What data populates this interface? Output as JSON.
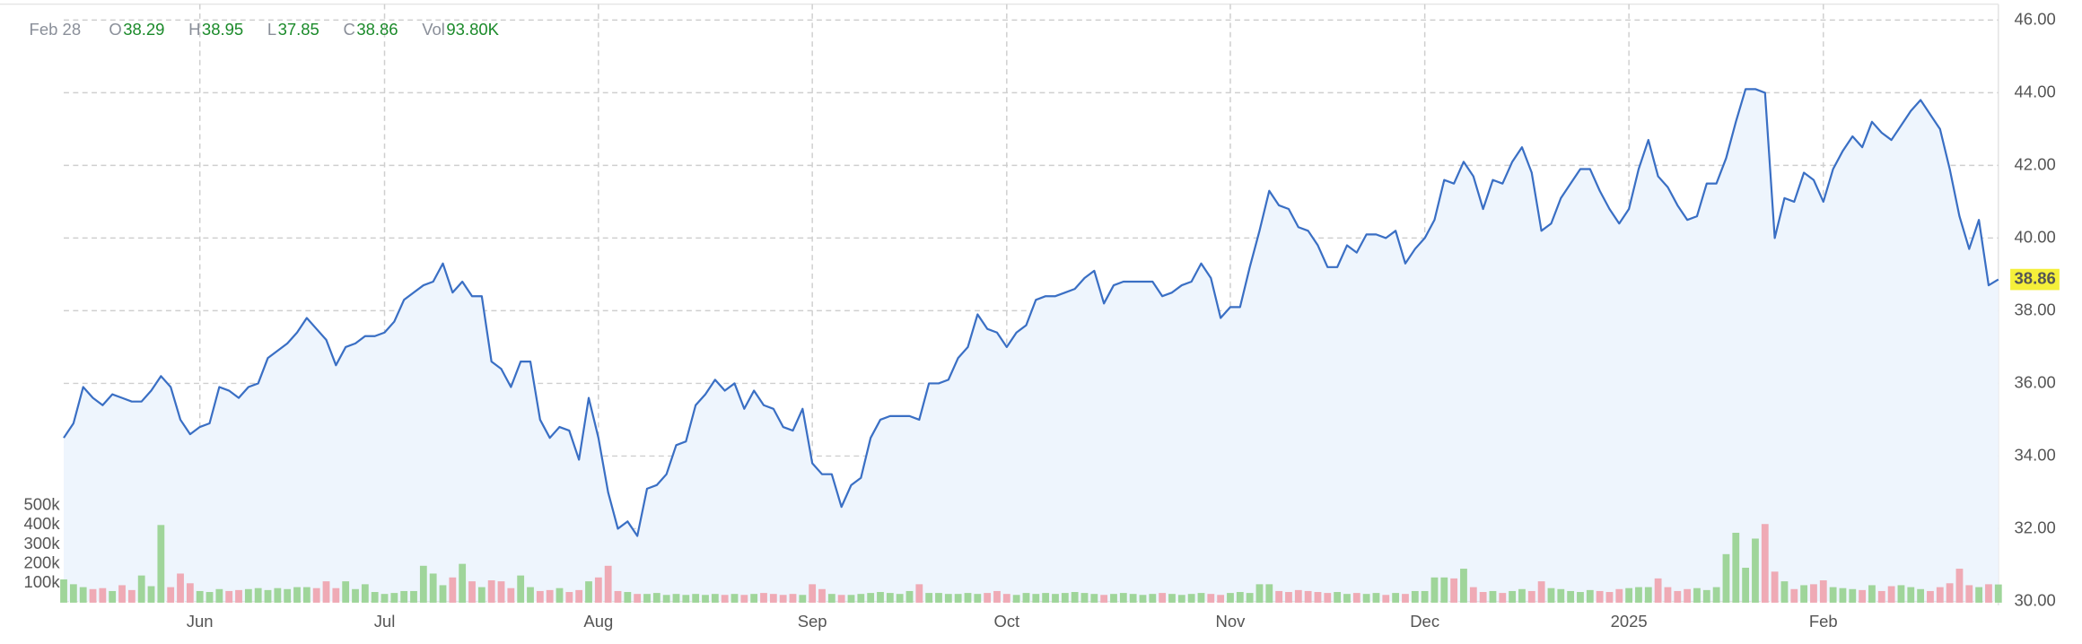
{
  "chart_data": {
    "type": "area",
    "header": {
      "date": "Feb 28",
      "items": [
        {
          "key": "O",
          "value": 38.29
        },
        {
          "key": "H",
          "value": 38.95
        },
        {
          "key": "L",
          "value": 37.85
        },
        {
          "key": "C",
          "value": 38.86
        },
        {
          "key": "Vol",
          "value": "93.80K"
        }
      ]
    },
    "categories": [
      null,
      null,
      null,
      null,
      null,
      null,
      null,
      null,
      null,
      null,
      null,
      null,
      null,
      null,
      "Jun",
      null,
      null,
      null,
      null,
      null,
      null,
      null,
      null,
      null,
      null,
      null,
      null,
      null,
      null,
      null,
      null,
      null,
      null,
      "Jul",
      null,
      null,
      null,
      null,
      null,
      null,
      null,
      null,
      null,
      null,
      null,
      null,
      null,
      null,
      null,
      null,
      null,
      null,
      null,
      null,
      null,
      "Aug",
      null,
      null,
      null,
      null,
      null,
      null,
      null,
      null,
      null,
      null,
      null,
      null,
      null,
      null,
      null,
      null,
      null,
      null,
      null,
      null,
      null,
      "Sep",
      null,
      null,
      null,
      null,
      null,
      null,
      null,
      null,
      null,
      null,
      null,
      null,
      null,
      null,
      null,
      null,
      null,
      null,
      null,
      "Oct",
      null,
      null,
      null,
      null,
      null,
      null,
      null,
      null,
      null,
      null,
      null,
      null,
      null,
      null,
      null,
      null,
      null,
      null,
      null,
      null,
      null,
      null,
      "Nov",
      null,
      null,
      null,
      null,
      null,
      null,
      null,
      null,
      null,
      null,
      null,
      null,
      null,
      null,
      null,
      null,
      null,
      null,
      null,
      "Dec",
      null,
      null,
      null,
      null,
      null,
      null,
      null,
      null,
      null,
      null,
      null,
      null,
      null,
      null,
      null,
      null,
      null,
      null,
      null,
      null,
      "2025",
      null,
      null,
      null,
      null,
      null,
      null,
      null,
      null,
      null,
      null,
      null,
      null,
      null,
      null,
      null,
      null,
      null,
      null,
      null,
      "Feb",
      null,
      null,
      null,
      null,
      null,
      null,
      null,
      null,
      null,
      null,
      null,
      null,
      null,
      null,
      null,
      null,
      null,
      null
    ],
    "values": [
      34.5,
      34.9,
      35.9,
      35.6,
      35.4,
      35.7,
      35.6,
      35.5,
      35.5,
      35.8,
      36.2,
      35.9,
      35.0,
      34.6,
      34.8,
      34.9,
      35.9,
      35.8,
      35.6,
      35.9,
      36.0,
      36.7,
      36.9,
      37.1,
      37.4,
      37.8,
      37.5,
      37.2,
      36.5,
      37.0,
      37.1,
      37.3,
      37.3,
      37.4,
      37.7,
      38.3,
      38.5,
      38.7,
      38.8,
      39.3,
      38.5,
      38.8,
      38.4,
      38.4,
      36.6,
      36.4,
      35.9,
      36.6,
      36.6,
      35.0,
      34.5,
      34.8,
      34.7,
      33.9,
      35.6,
      34.5,
      33.0,
      32.0,
      32.2,
      31.8,
      33.1,
      33.2,
      33.5,
      34.3,
      34.4,
      35.4,
      35.7,
      36.1,
      35.8,
      36.0,
      35.3,
      35.8,
      35.4,
      35.3,
      34.8,
      34.7,
      35.3,
      33.8,
      33.5,
      33.5,
      32.6,
      33.2,
      33.4,
      34.5,
      35.0,
      35.1,
      35.1,
      35.1,
      35.0,
      36.0,
      36.0,
      36.1,
      36.7,
      37.0,
      37.9,
      37.5,
      37.4,
      37.0,
      37.4,
      37.6,
      38.3,
      38.4,
      38.4,
      38.5,
      38.6,
      38.9,
      39.1,
      38.2,
      38.7,
      38.8,
      38.8,
      38.8,
      38.8,
      38.4,
      38.5,
      38.7,
      38.8,
      39.3,
      38.9,
      37.8,
      38.1,
      38.1,
      39.2,
      40.2,
      41.3,
      40.9,
      40.8,
      40.3,
      40.2,
      39.8,
      39.2,
      39.2,
      39.8,
      39.6,
      40.1,
      40.1,
      40.0,
      40.2,
      39.3,
      39.7,
      40.0,
      40.5,
      41.6,
      41.5,
      42.1,
      41.7,
      40.8,
      41.6,
      41.5,
      42.1,
      42.5,
      41.8,
      40.2,
      40.4,
      41.1,
      41.5,
      41.9,
      41.9,
      41.3,
      40.8,
      40.4,
      40.8,
      41.9,
      42.7,
      41.7,
      41.4,
      40.9,
      40.5,
      40.6,
      41.5,
      41.5,
      42.2,
      43.2,
      44.1,
      44.1,
      44.0,
      40.0,
      41.1,
      41.0,
      41.8,
      41.6,
      41.0,
      41.9,
      42.4,
      42.8,
      42.5,
      43.2,
      42.9,
      42.7,
      43.1,
      43.5,
      43.8,
      43.4,
      43.0,
      41.9,
      40.6,
      39.7,
      40.5,
      38.7,
      38.86
    ],
    "color": "#3a6fc4",
    "fill_color": "#eef5fd",
    "ylim": [
      30,
      46
    ],
    "yticks": [
      {
        "value": 30,
        "label": "30.00"
      },
      {
        "value": 32,
        "label": "32.00"
      },
      {
        "value": 34,
        "label": "34.00"
      },
      {
        "value": 36,
        "label": "36.00"
      },
      {
        "value": 38,
        "label": "38.00"
      },
      {
        "value": 40,
        "label": "40.00"
      },
      {
        "value": 42,
        "label": "42.00"
      },
      {
        "value": 44,
        "label": "44.00"
      },
      {
        "value": 46,
        "label": "46.00"
      }
    ],
    "grid": true,
    "last_value_color": "#f5ef3a",
    "volume": {
      "values": [
        120000,
        95000,
        80000,
        70000,
        75000,
        60000,
        90000,
        65000,
        140000,
        85000,
        400000,
        80000,
        150000,
        100000,
        60000,
        55000,
        70000,
        60000,
        65000,
        70000,
        75000,
        65000,
        75000,
        70000,
        80000,
        80000,
        75000,
        110000,
        75000,
        110000,
        70000,
        95000,
        55000,
        45000,
        50000,
        60000,
        60000,
        190000,
        150000,
        90000,
        130000,
        200000,
        110000,
        80000,
        115000,
        110000,
        75000,
        140000,
        80000,
        60000,
        65000,
        75000,
        55000,
        65000,
        110000,
        130000,
        190000,
        60000,
        55000,
        45000,
        45000,
        50000,
        40000,
        45000,
        40000,
        45000,
        40000,
        45000,
        40000,
        45000,
        40000,
        45000,
        50000,
        45000,
        40000,
        45000,
        40000,
        95000,
        70000,
        45000,
        40000,
        40000,
        45000,
        50000,
        55000,
        50000,
        45000,
        60000,
        95000,
        50000,
        50000,
        45000,
        45000,
        50000,
        45000,
        50000,
        60000,
        45000,
        40000,
        50000,
        45000,
        50000,
        45000,
        50000,
        55000,
        50000,
        45000,
        40000,
        45000,
        50000,
        45000,
        40000,
        45000,
        50000,
        45000,
        40000,
        45000,
        50000,
        45000,
        40000,
        50000,
        55000,
        50000,
        95000,
        95000,
        60000,
        55000,
        65000,
        60000,
        55000,
        50000,
        55000,
        45000,
        50000,
        45000,
        50000,
        40000,
        50000,
        45000,
        60000,
        60000,
        130000,
        130000,
        125000,
        175000,
        80000,
        55000,
        60000,
        50000,
        60000,
        70000,
        60000,
        110000,
        75000,
        70000,
        60000,
        55000,
        65000,
        60000,
        55000,
        70000,
        75000,
        80000,
        80000,
        125000,
        80000,
        60000,
        70000,
        75000,
        65000,
        80000,
        250000,
        360000,
        180000,
        330000,
        405000,
        160000,
        110000,
        70000,
        90000,
        95000,
        115000,
        80000,
        75000,
        70000,
        65000,
        90000,
        60000,
        85000,
        90000,
        80000,
        70000,
        60000,
        80000,
        100000,
        175000,
        90000,
        80000,
        95000,
        93800
      ],
      "ylim": [
        0,
        3000000
      ],
      "yticks": [
        {
          "value": 100000,
          "label": "100k"
        },
        {
          "value": 200000,
          "label": "200k"
        },
        {
          "value": 300000,
          "label": "300k"
        },
        {
          "value": 400000,
          "label": "400k"
        },
        {
          "value": 500000,
          "label": "500k"
        }
      ],
      "up_color": "#9fd59a",
      "down_color": "#efaab5"
    }
  }
}
